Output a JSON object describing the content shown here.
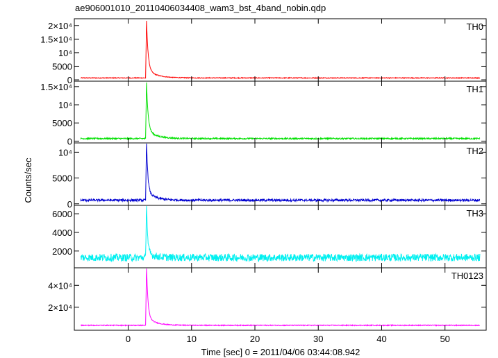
{
  "chart_data": {
    "type": "line",
    "title": "ae906001010_20110406034408_wam3_bst_4band_nobin.qdp",
    "xlabel": "Time [sec] 0 = 2011/04/06 03:44:08.942",
    "ylabel": "Counts/sec",
    "xlim": [
      -8.5,
      56.5
    ],
    "x_ticks": [
      0,
      10,
      20,
      30,
      40,
      50
    ],
    "x_tick_labels": [
      "0",
      "10",
      "20",
      "30",
      "40",
      "50"
    ],
    "grid": false,
    "panels": [
      {
        "name": "TH0",
        "color": "#ff0000",
        "ylim": [
          -500,
          22500
        ],
        "y_ticks": [
          0,
          5000,
          10000,
          15000,
          20000
        ],
        "y_tick_labels": [
          "0",
          "5000",
          "10⁴",
          "1.5×10⁴",
          "2×10⁴"
        ],
        "background": 700,
        "noise": 150,
        "peak": 21000,
        "peak_time": 2.9,
        "decay_fast": 0.25,
        "decay_tail": 1.5,
        "tail_fraction": 0.15
      },
      {
        "name": "TH1",
        "color": "#00e000",
        "ylim": [
          -500,
          16500
        ],
        "y_ticks": [
          0,
          5000,
          10000,
          15000
        ],
        "y_tick_labels": [
          "0",
          "5000",
          "10⁴",
          "1.5×10⁴"
        ],
        "background": 700,
        "noise": 200,
        "peak": 15500,
        "peak_time": 2.9,
        "decay_fast": 0.25,
        "decay_tail": 1.5,
        "tail_fraction": 0.15
      },
      {
        "name": "TH2",
        "color": "#0000d0",
        "ylim": [
          -300,
          11800
        ],
        "y_ticks": [
          0,
          5000,
          10000
        ],
        "y_tick_labels": [
          "0",
          "5000",
          "10⁴"
        ],
        "background": 700,
        "noise": 230,
        "peak": 11700,
        "peak_time": 2.9,
        "decay_fast": 0.2,
        "decay_tail": 1.3,
        "tail_fraction": 0.15
      },
      {
        "name": "TH3",
        "color": "#00f0f0",
        "ylim": [
          200,
          6900
        ],
        "y_ticks": [
          2000,
          4000,
          6000
        ],
        "y_tick_labels": [
          "2000",
          "4000",
          "6000"
        ],
        "background": 1300,
        "noise": 400,
        "peak": 6400,
        "peak_time": 2.9,
        "decay_fast": 0.15,
        "decay_tail": 1.0,
        "tail_fraction": 0.1
      },
      {
        "name": "TH0123",
        "color": "#ff00ff",
        "ylim": [
          -1000,
          56000
        ],
        "y_ticks": [
          20000,
          40000
        ],
        "y_tick_labels": [
          "2×10⁴",
          "4×10⁴"
        ],
        "background": 3500,
        "noise": 400,
        "peak": 54000,
        "peak_time": 2.9,
        "decay_fast": 0.22,
        "decay_tail": 1.4,
        "tail_fraction": 0.14
      }
    ]
  }
}
